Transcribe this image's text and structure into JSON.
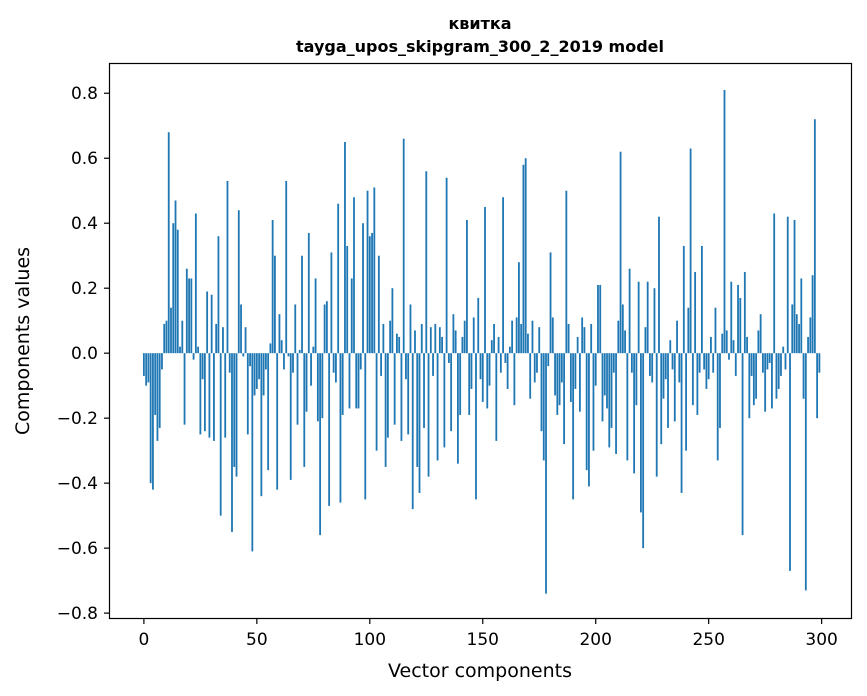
{
  "chart_data": {
    "type": "bar",
    "title_line1": "квитка",
    "title_line2": "tayga_upos_skipgram_300_2_2019 model",
    "xlabel": "Vector components",
    "ylabel": "Components values",
    "xlim": [
      -15,
      313
    ],
    "ylim": [
      -0.815,
      0.89
    ],
    "xticks": [
      0,
      50,
      100,
      150,
      200,
      250,
      300
    ],
    "xtick_labels": [
      "0",
      "50",
      "100",
      "150",
      "200",
      "250",
      "300"
    ],
    "yticks": [
      -0.8,
      -0.6,
      -0.4,
      -0.2,
      0.0,
      0.2,
      0.4,
      0.6,
      0.8
    ],
    "ytick_labels": [
      "−0.8",
      "−0.6",
      "−0.4",
      "−0.2",
      "0.0",
      "0.2",
      "0.4",
      "0.6",
      "0.8"
    ],
    "bar_color": "#1f77b4",
    "values": [
      -0.07,
      -0.1,
      -0.09,
      -0.4,
      -0.42,
      -0.19,
      -0.27,
      -0.23,
      -0.05,
      0.09,
      0.1,
      0.68,
      0.14,
      0.4,
      0.47,
      0.38,
      0.02,
      0.1,
      -0.22,
      0.26,
      0.23,
      0.23,
      -0.02,
      0.43,
      0.02,
      -0.25,
      -0.08,
      -0.24,
      0.19,
      -0.26,
      0.18,
      -0.27,
      0.09,
      0.36,
      -0.5,
      0.08,
      -0.26,
      0.53,
      -0.06,
      -0.55,
      -0.35,
      -0.38,
      0.44,
      0.15,
      -0.01,
      0.08,
      -0.25,
      -0.04,
      -0.61,
      -0.13,
      -0.11,
      -0.08,
      -0.44,
      -0.13,
      -0.05,
      -0.36,
      0.03,
      0.41,
      0.3,
      -0.42,
      0.12,
      0.04,
      -0.05,
      0.53,
      -0.01,
      -0.39,
      -0.06,
      0.15,
      -0.22,
      0.01,
      0.3,
      -0.35,
      -0.18,
      0.37,
      -0.1,
      0.02,
      0.23,
      -0.21,
      -0.56,
      -0.2,
      0.15,
      0.16,
      -0.47,
      0.31,
      -0.06,
      -0.09,
      0.46,
      -0.46,
      -0.19,
      0.65,
      0.33,
      -0.17,
      0.23,
      0.48,
      -0.17,
      -0.17,
      -0.05,
      0.4,
      -0.45,
      0.5,
      0.36,
      0.37,
      0.51,
      -0.3,
      0.3,
      -0.07,
      0.09,
      -0.35,
      -0.26,
      0.1,
      0.2,
      -0.22,
      0.06,
      0.05,
      -0.27,
      0.66,
      -0.08,
      -0.25,
      0.15,
      -0.48,
      0.07,
      -0.35,
      -0.43,
      0.09,
      -0.23,
      0.56,
      -0.38,
      0.08,
      -0.07,
      0.09,
      -0.33,
      0.08,
      0.05,
      -0.29,
      0.54,
      -0.03,
      -0.24,
      0.12,
      0.07,
      -0.34,
      -0.19,
      0.05,
      0.1,
      0.41,
      -0.19,
      -0.11,
      0.11,
      -0.45,
      0.17,
      -0.08,
      -0.15,
      0.45,
      -0.17,
      -0.1,
      0.04,
      0.09,
      -0.27,
      0.05,
      -0.06,
      0.48,
      -0.03,
      -0.11,
      0.02,
      0.1,
      -0.16,
      0.11,
      0.28,
      0.09,
      0.58,
      0.6,
      0.06,
      -0.14,
      0.1,
      -0.09,
      -0.06,
      0.08,
      -0.24,
      -0.33,
      -0.74,
      -0.04,
      0.31,
      0.11,
      -0.13,
      -0.19,
      -0.16,
      -0.09,
      -0.28,
      0.5,
      0.09,
      -0.15,
      -0.45,
      -0.11,
      0.05,
      -0.18,
      0.11,
      0.08,
      -0.36,
      -0.41,
      0.09,
      -0.3,
      -0.1,
      0.21,
      0.21,
      -0.21,
      -0.13,
      -0.17,
      -0.29,
      -0.23,
      -0.06,
      -0.31,
      0.1,
      0.62,
      0.15,
      0.07,
      -0.33,
      0.26,
      -0.06,
      -0.37,
      -0.16,
      0.22,
      -0.49,
      -0.6,
      0.08,
      0.22,
      -0.07,
      -0.09,
      0.2,
      -0.38,
      0.42,
      -0.28,
      -0.14,
      -0.08,
      -0.23,
      0.04,
      -0.05,
      -0.21,
      0.1,
      -0.09,
      -0.43,
      0.33,
      -0.3,
      0.14,
      0.63,
      -0.16,
      0.25,
      -0.19,
      -0.06,
      0.33,
      -0.05,
      -0.11,
      -0.08,
      0.05,
      -0.06,
      0.14,
      -0.33,
      -0.23,
      0.06,
      0.81,
      0.07,
      -0.02,
      0.22,
      0.04,
      -0.07,
      0.21,
      0.17,
      -0.56,
      0.25,
      0.05,
      -0.2,
      -0.07,
      -0.16,
      -0.14,
      0.07,
      0.12,
      -0.06,
      -0.18,
      -0.05,
      -0.03,
      -0.17,
      0.43,
      -0.14,
      -0.11,
      -0.07,
      0.02,
      -0.05,
      0.42,
      -0.67,
      0.15,
      0.41,
      0.12,
      0.09,
      0.23,
      -0.14,
      -0.73,
      0.05,
      0.11,
      0.24,
      0.72,
      -0.2,
      -0.06
    ]
  }
}
